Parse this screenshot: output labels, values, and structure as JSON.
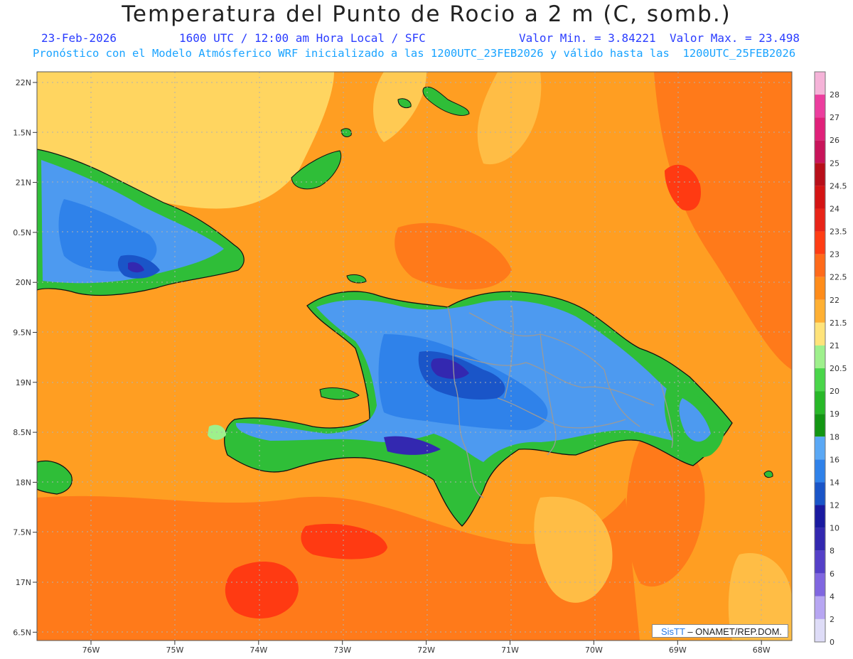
{
  "header": {
    "title": "Temperatura del Punto de Rocio a 2 m (C, somb.)",
    "date": "23-Feb-2026",
    "time": "1600 UTC / 12:00 am Hora Local / SFC",
    "min": "Valor Min. = 3.84221",
    "max": "Valor Max. = 23.498",
    "model_line": "Pronóstico con el Modelo Atmósferico WRF inicializado a las 1200UTC_23FEB2026 y válido hasta las  1200UTC_25FEB2026"
  },
  "axes": {
    "lat_labels": [
      "22N",
      "1.5N",
      "21N",
      "0.5N",
      "20N",
      "9.5N",
      "19N",
      "8.5N",
      "18N",
      "7.5N",
      "17N",
      "6.5N"
    ],
    "lon_labels": [
      "76W",
      "75W",
      "74W",
      "73W",
      "72W",
      "71W",
      "70W",
      "69W",
      "68W"
    ]
  },
  "colorbar": {
    "levels": [
      {
        "label": "28",
        "color": "#f5b3d8"
      },
      {
        "label": "27",
        "color": "#ec3d9e"
      },
      {
        "label": "26",
        "color": "#e0207a"
      },
      {
        "label": "25",
        "color": "#c8145a"
      },
      {
        "label": "24.5",
        "color": "#b80f1a"
      },
      {
        "label": "24",
        "color": "#d41414"
      },
      {
        "label": "23.5",
        "color": "#e82418"
      },
      {
        "label": "23",
        "color": "#ff3d14"
      },
      {
        "label": "22.5",
        "color": "#ff6a1a"
      },
      {
        "label": "22",
        "color": "#ff8c1a"
      },
      {
        "label": "21.5",
        "color": "#ffb033"
      },
      {
        "label": "21",
        "color": "#ffe37a"
      },
      {
        "label": "20.5",
        "color": "#9ef08c"
      },
      {
        "label": "20",
        "color": "#4ad64a"
      },
      {
        "label": "19",
        "color": "#28b828"
      },
      {
        "label": "18",
        "color": "#139613"
      },
      {
        "label": "16",
        "color": "#5aa8f5"
      },
      {
        "label": "14",
        "color": "#2f82ea"
      },
      {
        "label": "12",
        "color": "#1a55c8"
      },
      {
        "label": "10",
        "color": "#1a1aa0"
      },
      {
        "label": "8",
        "color": "#3328b0"
      },
      {
        "label": "6",
        "color": "#5540c8"
      },
      {
        "label": "4",
        "color": "#8066e0"
      },
      {
        "label": "2",
        "color": "#b7a6f2"
      },
      {
        "label": "0",
        "color": "#dedcf7"
      }
    ]
  },
  "credit": {
    "sis": "SisTT",
    "org": "– ONAMET/REP.DOM."
  },
  "colors": {
    "ocean_base": "#ff9e22",
    "ocean_warm": "#ff7a1a",
    "hot_spot": "#ff3a12",
    "cool_plume": "#ffd560",
    "land_green": "#2fbe38",
    "land_blue": "#4d9af0",
    "land_darkblue": "#1a55c8",
    "land_purple": "#4030b8",
    "border_gray": "#9a9a9a"
  }
}
